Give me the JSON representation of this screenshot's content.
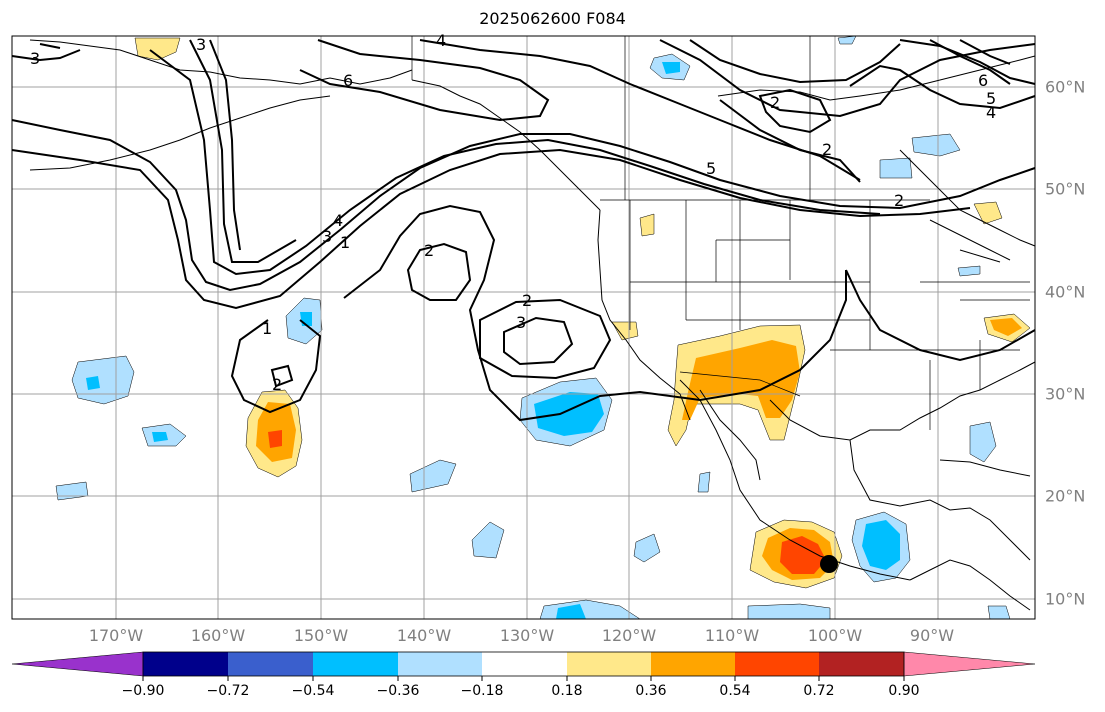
{
  "title": "2025062600 F084",
  "longitude_labels": [
    "170°W",
    "160°W",
    "150°W",
    "140°W",
    "130°W",
    "120°W",
    "110°W",
    "100°W",
    "90°W"
  ],
  "latitude_labels": [
    "60°N",
    "50°N",
    "40°N",
    "30°N",
    "20°N",
    "10°N"
  ],
  "contour_labels": [
    "3",
    "4",
    "3",
    "6",
    "1",
    "3",
    "4",
    "2",
    "2",
    "3",
    "1",
    "2",
    "5",
    "2",
    "2",
    "5",
    "4",
    "6",
    "2"
  ],
  "colorbar": {
    "tick_labels": [
      "−0.90",
      "−0.72",
      "−0.54",
      "−0.36",
      "−0.18",
      "0.18",
      "0.36",
      "0.54",
      "0.72",
      "0.90"
    ],
    "colors": [
      "#9932cc",
      "#00008b",
      "#3a5fcd",
      "#00bfff",
      "#b0e0ff",
      "#ffffff",
      "#ffe88a",
      "#ffa500",
      "#ff4500",
      "#b22222",
      "#ff88aa"
    ]
  },
  "colors": {
    "land_outline": "#000000",
    "grid": "#a0a0a0",
    "contour": "#000000",
    "marker": "#000000"
  }
}
